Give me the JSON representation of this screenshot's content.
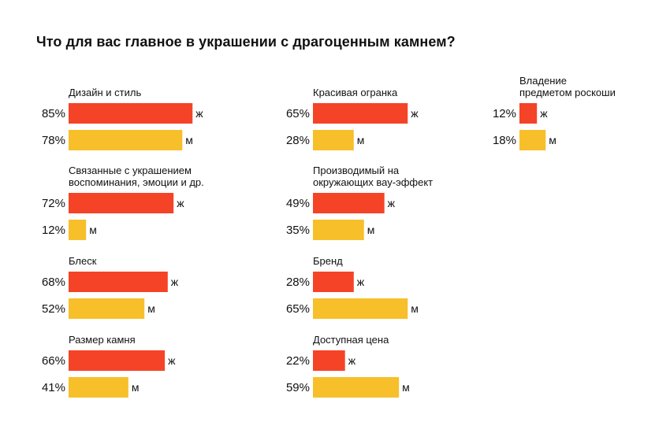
{
  "chart_data": {
    "type": "bar",
    "title": "Что для вас главное в украшении с драгоценным камнем?",
    "unit": "%",
    "series": [
      {
        "name": "ж",
        "color": "#f54327"
      },
      {
        "name": "м",
        "color": "#f7bf2a"
      }
    ],
    "groups": [
      {
        "label": [
          "Дизайн и стиль"
        ],
        "values": [
          85,
          78
        ]
      },
      {
        "label": [
          "Связанные с украшением",
          "воспоминания, эмоции и др."
        ],
        "values": [
          72,
          12
        ]
      },
      {
        "label": [
          "Блеск"
        ],
        "values": [
          68,
          52
        ]
      },
      {
        "label": [
          "Размер камня"
        ],
        "values": [
          66,
          41
        ]
      },
      {
        "label": [
          "Красивая огранка"
        ],
        "values": [
          65,
          28
        ]
      },
      {
        "label": [
          "Производимый на",
          "окружающих вау-эффект"
        ],
        "values": [
          49,
          35
        ]
      },
      {
        "label": [
          "Бренд"
        ],
        "values": [
          28,
          65
        ]
      },
      {
        "label": [
          "Доступная цена"
        ],
        "values": [
          22,
          59
        ]
      },
      {
        "label": [
          "Владение",
          "предметом роскоши"
        ],
        "values": [
          12,
          18
        ]
      }
    ]
  }
}
